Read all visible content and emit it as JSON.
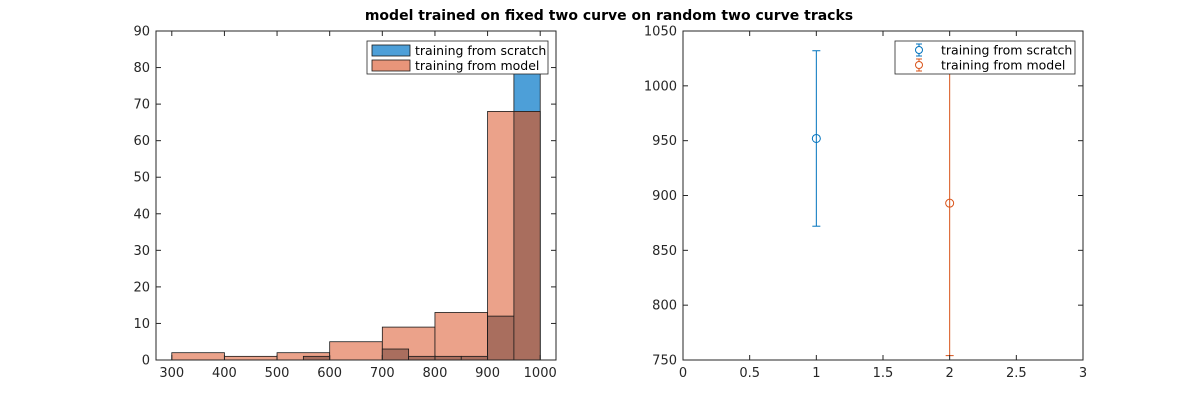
{
  "figure": {
    "suptitle": "model trained on fixed two curve on random two curve tracks"
  },
  "colors": {
    "scratch": "#0072BD",
    "model": "#D95319",
    "scratch_face": "#4d9fd8",
    "model_face": "#e8957a",
    "overlap_face": "#a96e5e"
  },
  "chart_data": [
    {
      "type": "histogram",
      "title": "",
      "xlabel": "",
      "ylabel": "",
      "xlim": [
        270,
        1030
      ],
      "ylim": [
        0,
        90
      ],
      "xticks": [
        300,
        400,
        500,
        600,
        700,
        800,
        900,
        1000
      ],
      "yticks": [
        0,
        10,
        20,
        30,
        40,
        50,
        60,
        70,
        80,
        90
      ],
      "legend_position": "top-right",
      "series": [
        {
          "name": "training from scratch",
          "color": "#4d9fd8",
          "bins": [
            {
              "x0": 550,
              "x1": 600,
              "value": 1
            },
            {
              "x0": 700,
              "x1": 750,
              "value": 3
            },
            {
              "x0": 750,
              "x1": 800,
              "value": 1
            },
            {
              "x0": 800,
              "x1": 850,
              "value": 1
            },
            {
              "x0": 850,
              "x1": 900,
              "value": 1
            },
            {
              "x0": 900,
              "x1": 950,
              "value": 12
            },
            {
              "x0": 950,
              "x1": 1000,
              "value": 81
            }
          ]
        },
        {
          "name": "training from model",
          "color": "#e8957a",
          "bins": [
            {
              "x0": 300,
              "x1": 400,
              "value": 2
            },
            {
              "x0": 400,
              "x1": 500,
              "value": 1
            },
            {
              "x0": 500,
              "x1": 600,
              "value": 2
            },
            {
              "x0": 600,
              "x1": 700,
              "value": 5
            },
            {
              "x0": 700,
              "x1": 800,
              "value": 9
            },
            {
              "x0": 800,
              "x1": 900,
              "value": 13
            },
            {
              "x0": 900,
              "x1": 1000,
              "value": 68
            }
          ]
        }
      ]
    },
    {
      "type": "errorbar",
      "title": "",
      "xlabel": "",
      "ylabel": "",
      "xlim": [
        0,
        3
      ],
      "ylim": [
        750,
        1050
      ],
      "xticks": [
        0,
        0.5,
        1,
        1.5,
        2,
        2.5,
        3
      ],
      "yticks": [
        750,
        800,
        850,
        900,
        950,
        1000,
        1050
      ],
      "legend_position": "top-right",
      "series": [
        {
          "name": "training from scratch",
          "color": "#0072BD",
          "x": 1,
          "y": 952,
          "lower": 872,
          "upper": 1032
        },
        {
          "name": "training from model",
          "color": "#D95319",
          "x": 2,
          "y": 893,
          "lower": 754,
          "upper": 1032
        }
      ]
    }
  ]
}
